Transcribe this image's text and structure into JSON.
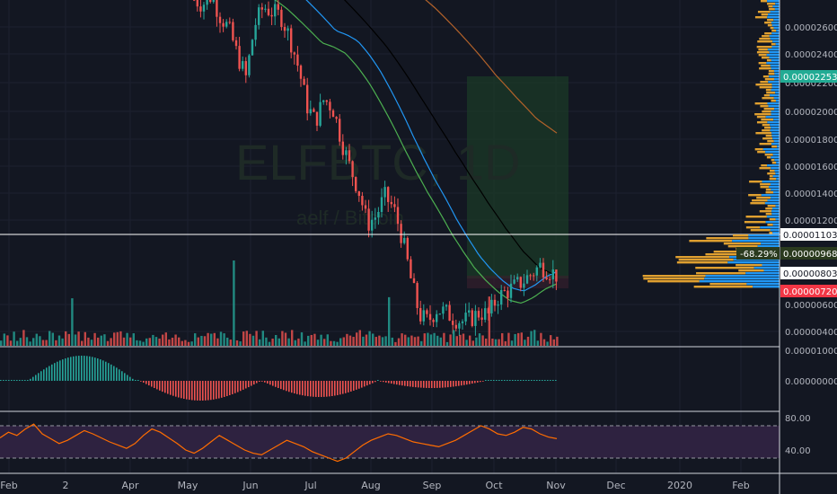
{
  "watermark": {
    "symbol": "ELFBTC, 1D",
    "name": "aelf / Bitcoin"
  },
  "chart_data": [
    {
      "type": "line",
      "panel": "price",
      "scale": "log",
      "y_ticks": [
        "0.00002600",
        "0.00002400",
        "0.00002200",
        "0.00002000",
        "0.00001800",
        "0.00001600",
        "0.00001400",
        "0.00001200",
        "0.00000600",
        "0.00000400"
      ],
      "x_ticks": [
        "Feb",
        "2",
        "Apr",
        "May",
        "Jun",
        "Jul",
        "Aug",
        "Sep",
        "Oct",
        "Nov",
        "Dec",
        "2020",
        "Feb"
      ],
      "series": [
        {
          "values": [
            2.9e-05,
            2.85e-05,
            2.95e-05,
            2.72e-05,
            2.58e-05,
            2.32e-05,
            2.12e-05,
            2.62e-05,
            2.82e-05,
            2.76e-05,
            2.72e-05,
            2.5e-05,
            2.22e-05,
            1.9e-05,
            1.78e-05,
            1.95e-05,
            1.88e-05,
            1.65e-05,
            1.48e-05,
            1.35e-05,
            1.18e-05,
            1.22e-05,
            1.32e-05,
            1.26e-05,
            1.12e-05,
            9.5e-06,
            8.2e-06,
            8e-06,
            8.4e-06,
            8.3e-06,
            8.1e-06,
            8e-06,
            8.1e-06,
            8.3e-06,
            8.2e-06,
            8.8e-06,
            9e-06,
            9.2e-06,
            9.4e-06,
            9.7e-06,
            1e-05,
            9.8e-06,
            9.6e-06
          ]
        },
        {
          "values": [
            3e-05,
            2.96e-05,
            2.9e-05,
            2.8e-05,
            2.68e-05,
            2.56e-05,
            2.44e-05,
            2.4e-05,
            2.34e-05,
            2.22e-05,
            2.08e-05,
            1.92e-05,
            1.76e-05,
            1.6e-05,
            1.46e-05,
            1.34e-05,
            1.24e-05,
            1.14e-05,
            1.06e-05,
            9.9e-06,
            9.4e-06,
            9e-06,
            8.7e-06,
            8.6e-06,
            8.8e-06,
            9.1e-06,
            9.3e-06
          ]
        },
        {
          "values": [
            3.2e-05,
            3e-05,
            2.8e-05,
            2.6e-05,
            2.4e-05,
            2.18e-05,
            1.96e-05,
            1.76e-05,
            1.58e-05,
            1.42e-05,
            1.28e-05,
            1.16e-05,
            1.06e-05,
            9.9e-06,
            9.6e-06
          ]
        },
        {
          "values": [
            3.2e-05,
            3e-05,
            2.8e-05,
            2.58e-05,
            2.36e-05,
            2.14e-05,
            1.96e-05,
            1.8e-05,
            1.7e-05
          ]
        }
      ],
      "price_labels": [
        {
          "text": "0.00002253",
          "bg": "#22ab94",
          "fg": "#ffffff"
        },
        {
          "text": "0.00001103",
          "bg": "#ffffff",
          "fg": "#131722"
        },
        {
          "text": "0.00000968",
          "bg": "#2a3a1e",
          "fg": "#ffffff"
        },
        {
          "text": "0.00000803",
          "bg": "#ffffff",
          "fg": "#131722"
        },
        {
          "text": "0.00000720",
          "bg": "#f23645",
          "fg": "#ffffff"
        }
      ],
      "measure_label": "-68.29%"
    },
    {
      "type": "bar",
      "panel": "oscillator",
      "y_ticks": [
        "0.00001000",
        "0.00000000"
      ]
    },
    {
      "type": "line",
      "panel": "rsi",
      "y_ticks": [
        "80.00",
        "40.00"
      ],
      "values": [
        55,
        62,
        58,
        66,
        72,
        60,
        54,
        48,
        52,
        58,
        64,
        60,
        55,
        50,
        46,
        42,
        48,
        58,
        66,
        62,
        55,
        48,
        40,
        36,
        42,
        50,
        58,
        52,
        46,
        40,
        36,
        34,
        40,
        46,
        52,
        48,
        44,
        38,
        34,
        30,
        26,
        30,
        38,
        46,
        52,
        56,
        60,
        58,
        54,
        50,
        48,
        46,
        44,
        48,
        52,
        58,
        64,
        70,
        66,
        60,
        58,
        62,
        68,
        66,
        60,
        56,
        54
      ]
    }
  ],
  "colors": {
    "background": "#131722",
    "up": "#26a69a",
    "down": "#ef5350",
    "ma_fast": "#4caf50",
    "ma_mid": "#2196f3",
    "ma_slow": "#000000",
    "ma_long": "#b2622a",
    "rsi": "#ff6d00",
    "rsi_band": "#2e2240",
    "volume_profile_up": "#2196f3",
    "volume_profile_down": "#e0a030"
  }
}
